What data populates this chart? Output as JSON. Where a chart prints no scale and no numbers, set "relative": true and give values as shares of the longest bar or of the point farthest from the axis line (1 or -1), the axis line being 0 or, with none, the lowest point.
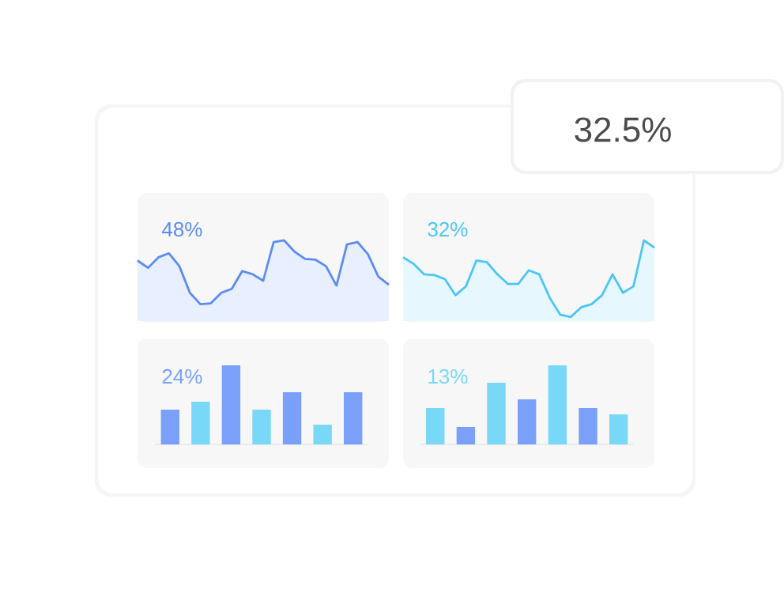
{
  "chart_data": [
    {
      "type": "other",
      "title": "32.5%"
    },
    {
      "type": "area",
      "title": "48%",
      "relative": true,
      "color": "#5b8cf5",
      "categories": [
        null,
        null,
        null,
        null,
        null,
        null,
        null,
        null,
        null,
        null,
        null,
        null,
        null,
        null,
        null,
        null,
        null,
        null,
        null,
        null,
        null,
        null,
        null,
        null,
        null
      ],
      "values": [
        0.75,
        0.66,
        0.79,
        0.84,
        0.68,
        0.35,
        0.21,
        0.22,
        0.35,
        0.4,
        0.62,
        0.58,
        0.5,
        0.98,
        1,
        0.86,
        0.77,
        0.76,
        0.68,
        0.44,
        0.95,
        0.98,
        0.83,
        0.55,
        0.45
      ]
    },
    {
      "type": "area",
      "title": "32%",
      "relative": true,
      "color": "#4cc6f5",
      "categories": [
        null,
        null,
        null,
        null,
        null,
        null,
        null,
        null,
        null,
        null,
        null,
        null,
        null,
        null,
        null,
        null,
        null,
        null,
        null,
        null,
        null,
        null,
        null,
        null,
        null
      ],
      "values": [
        0.79,
        0.71,
        0.58,
        0.57,
        0.52,
        0.32,
        0.43,
        0.75,
        0.73,
        0.58,
        0.46,
        0.46,
        0.63,
        0.58,
        0.29,
        0.08,
        0.05,
        0.17,
        0.21,
        0.32,
        0.58,
        0.35,
        0.43,
        1,
        0.91
      ]
    },
    {
      "type": "bar",
      "title": "24%",
      "relative": true,
      "categories": [
        null,
        null,
        null,
        null,
        null,
        null,
        null
      ],
      "values": [
        0.44,
        0.54,
        1,
        0.44,
        0.66,
        0.25,
        0.66
      ],
      "colors": [
        "#7aa0fa",
        "#79d8f7",
        "#7aa0fa",
        "#79d8f7",
        "#7aa0fa",
        "#79d8f7",
        "#7aa0fa"
      ]
    },
    {
      "type": "bar",
      "title": "13%",
      "relative": true,
      "categories": [
        null,
        null,
        null,
        null,
        null,
        null,
        null
      ],
      "values": [
        0.46,
        0.22,
        0.78,
        0.57,
        1,
        0.46,
        0.38
      ],
      "colors": [
        "#79d8f7",
        "#7aa0fa",
        "#79d8f7",
        "#7aa0fa",
        "#79d8f7",
        "#7aa0fa",
        "#79d8f7"
      ]
    }
  ]
}
